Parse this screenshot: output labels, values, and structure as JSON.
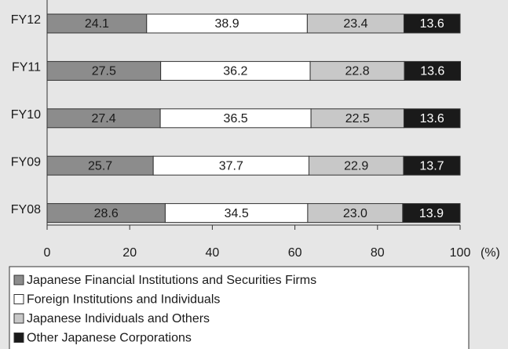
{
  "chart_data": {
    "type": "stacked-bar-horizontal",
    "categories": [
      "FY12",
      "FY11",
      "FY10",
      "FY09",
      "FY08"
    ],
    "series": [
      {
        "name": "Japanese Financial Institutions and Securities Firms",
        "color": "#8c8c8c",
        "values": [
          24.1,
          27.5,
          27.4,
          25.7,
          28.6
        ],
        "value_labels": [
          "24.1",
          "27.5",
          "27.4",
          "25.7",
          "28.6"
        ]
      },
      {
        "name": "Foreign Institutions and Individuals",
        "color": "#ffffff",
        "values": [
          38.9,
          36.2,
          36.5,
          37.7,
          34.5
        ],
        "value_labels": [
          "38.9",
          "36.2",
          "36.5",
          "37.7",
          "34.5"
        ]
      },
      {
        "name": "Japanese Individuals and Others",
        "color": "#c8c8c8",
        "values": [
          23.4,
          22.8,
          22.5,
          22.9,
          23.0
        ],
        "value_labels": [
          "23.4",
          "22.8",
          "22.5",
          "22.9",
          "23.0"
        ]
      },
      {
        "name": "Other Japanese Corporations",
        "color": "#1a1a1a",
        "values": [
          13.6,
          13.6,
          13.6,
          13.7,
          13.9
        ],
        "value_labels": [
          "13.6",
          "13.6",
          "13.6",
          "13.7",
          "13.9"
        ]
      }
    ],
    "xlabel": "(%)",
    "xlim": [
      0,
      100
    ],
    "xticks": [
      0,
      20,
      40,
      60,
      80,
      100
    ],
    "legend": "bottom"
  }
}
